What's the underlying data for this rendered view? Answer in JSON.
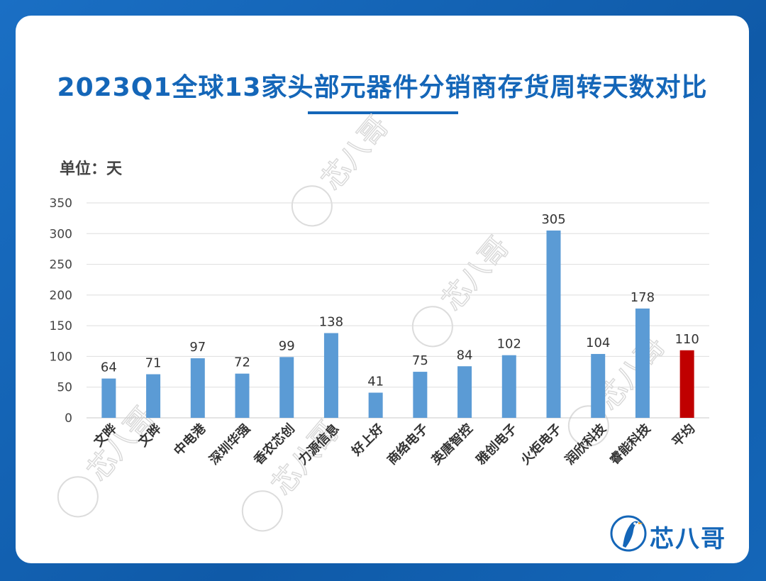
{
  "title": "2023Q1全球13家头部元器件分销商存货周转天数对比",
  "unit_label": "单位：天",
  "watermark": "芯八哥",
  "brand": {
    "name": "芯八哥",
    "color": "#1466b8"
  },
  "colors": {
    "bar": "#5b9bd5",
    "highlight_bar": "#c00000",
    "title": "#1466b8"
  },
  "chart_data": {
    "type": "bar",
    "categories": [
      "文晔",
      "文晔",
      "中电港",
      "深圳华强",
      "香农芯创",
      "力源信息",
      "好上好",
      "商络电子",
      "英唐智控",
      "雅创电子",
      "火炬电子",
      "润欣科技",
      "睿能科技",
      "平均"
    ],
    "values": [
      64,
      71,
      97,
      72,
      99,
      138,
      41,
      75,
      84,
      102,
      305,
      104,
      178,
      110
    ],
    "highlight_index": 13,
    "ylim": [
      0,
      350
    ],
    "yticks": [
      0,
      50,
      100,
      150,
      200,
      250,
      300,
      350
    ],
    "grid": true,
    "legend": "none",
    "title": "2023Q1全球13家头部元器件分销商存货周转天数对比",
    "ylabel": "单位：天"
  }
}
